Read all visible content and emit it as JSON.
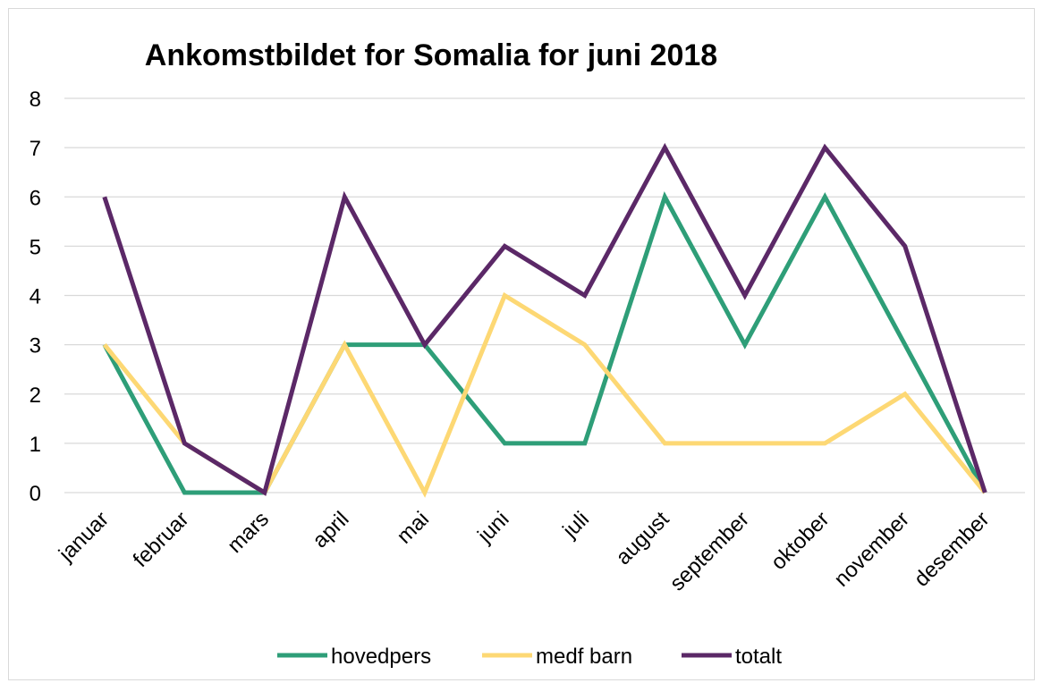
{
  "chart_data": {
    "type": "line",
    "title": "Ankomstbildet for Somalia for juni 2018",
    "xlabel": "",
    "ylabel": "",
    "categories": [
      "januar",
      "februar",
      "mars",
      "april",
      "mai",
      "juni",
      "juli",
      "august",
      "september",
      "oktober",
      "november",
      "desember"
    ],
    "ylim": [
      0,
      8
    ],
    "yticks": [
      "0",
      "1",
      "2",
      "3",
      "4",
      "5",
      "6",
      "7",
      "8"
    ],
    "grid": true,
    "legend_position": "bottom",
    "series": [
      {
        "name": "hovedpers",
        "color": "#2e9e78",
        "values": [
          3,
          0,
          0,
          3,
          3,
          1,
          1,
          6,
          3,
          6,
          3,
          0
        ]
      },
      {
        "name": "medf barn",
        "color": "#fdd874",
        "values": [
          3,
          1,
          0,
          3,
          0,
          4,
          3,
          1,
          1,
          1,
          2,
          0
        ]
      },
      {
        "name": "totalt",
        "color": "#5b2867",
        "values": [
          6,
          1,
          0,
          6,
          3,
          5,
          4,
          7,
          4,
          7,
          5,
          0
        ]
      }
    ]
  }
}
